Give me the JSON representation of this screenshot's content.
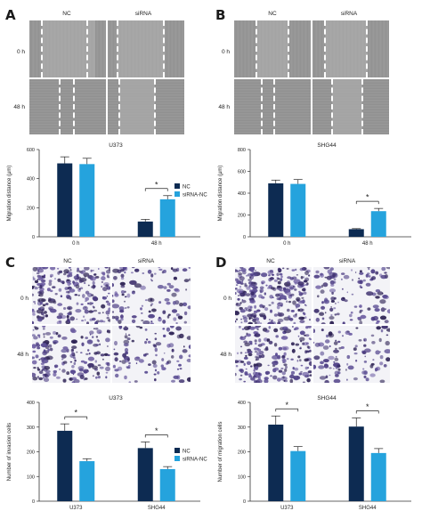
{
  "panels": {
    "A": {
      "letter": "A",
      "columns": [
        "NC",
        "siRNA"
      ],
      "rows": [
        "0 h",
        "48 h"
      ]
    },
    "B": {
      "letter": "B",
      "columns": [
        "NC",
        "siRNA"
      ],
      "rows": [
        "0 h",
        "48 h"
      ]
    },
    "C": {
      "letter": "C",
      "columns": [
        "NC",
        "siRNA"
      ],
      "rows": [
        "0 h",
        "48 h"
      ]
    },
    "D": {
      "letter": "D",
      "columns": [
        "NC",
        "siRNA"
      ],
      "rows": [
        "0 h",
        "48 h"
      ]
    }
  },
  "colors": {
    "nc": "#0d2b52",
    "sirna": "#25a3dd",
    "axis": "#333333"
  },
  "chart_data": [
    {
      "id": "chartA",
      "type": "bar",
      "title": "U373",
      "ylabel": "Migration distance (μm)",
      "categories": [
        "0 h",
        "48 h"
      ],
      "ylim": [
        0,
        600
      ],
      "yticks": [
        0,
        200,
        400,
        600
      ],
      "series": [
        {
          "name": "NC",
          "values": [
            505,
            105
          ],
          "errors": [
            45,
            15
          ]
        },
        {
          "name": "siRNA-NC",
          "values": [
            500,
            258
          ],
          "errors": [
            40,
            25
          ]
        }
      ],
      "significance": [
        {
          "category": 1,
          "label": "*"
        }
      ],
      "legend": "right"
    },
    {
      "id": "chartB",
      "type": "bar",
      "title": "SHG44",
      "ylabel": "Migration distance (μm)",
      "categories": [
        "0 h",
        "48 h"
      ],
      "ylim": [
        0,
        800
      ],
      "yticks": [
        0,
        200,
        400,
        600,
        800
      ],
      "series": [
        {
          "name": "NC",
          "values": [
            490,
            70
          ],
          "errors": [
            30,
            5
          ]
        },
        {
          "name": "siRNA-NC",
          "values": [
            485,
            235
          ],
          "errors": [
            40,
            25
          ]
        }
      ],
      "significance": [
        {
          "category": 1,
          "label": "*"
        }
      ],
      "legend": "none"
    },
    {
      "id": "chartC",
      "type": "bar",
      "title": "U373",
      "ylabel": "Number of invasion cells",
      "categories": [
        "U373",
        "SHG44"
      ],
      "ylim": [
        0,
        400
      ],
      "yticks": [
        0,
        100,
        200,
        300,
        400
      ],
      "series": [
        {
          "name": "NC",
          "values": [
            285,
            215
          ],
          "errors": [
            28,
            25
          ]
        },
        {
          "name": "siRNA-NC",
          "values": [
            162,
            130
          ],
          "errors": [
            10,
            10
          ]
        }
      ],
      "significance": [
        {
          "category": 0,
          "label": "*"
        },
        {
          "category": 1,
          "label": "*"
        }
      ],
      "legend": "right"
    },
    {
      "id": "chartD",
      "type": "bar",
      "title": "SHG44",
      "ylabel": "Number of migration cells",
      "categories": [
        "U373",
        "SHG44"
      ],
      "ylim": [
        0,
        400
      ],
      "yticks": [
        0,
        100,
        200,
        300,
        400
      ],
      "series": [
        {
          "name": "NC",
          "values": [
            310,
            302
          ],
          "errors": [
            35,
            35
          ]
        },
        {
          "name": "siRNA-NC",
          "values": [
            203,
            195
          ],
          "errors": [
            18,
            18
          ]
        }
      ],
      "significance": [
        {
          "category": 0,
          "label": "*"
        },
        {
          "category": 1,
          "label": "*"
        }
      ],
      "legend": "none"
    }
  ]
}
